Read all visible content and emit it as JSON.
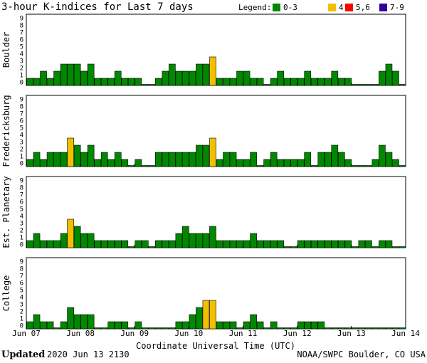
{
  "chart_data": {
    "type": "bar",
    "title": "3-hour K-indices for Last 7 days",
    "legend": {
      "title": "Legend:",
      "entries": [
        {
          "label": "0-3",
          "color": "#008800"
        },
        {
          "label": "4",
          "color": "#f0c000"
        },
        {
          "label": "5,6",
          "color": "#ff0000"
        },
        {
          "label": "7-9",
          "color": "#330099"
        }
      ]
    },
    "xlabel": "Coordinate Universal Time (UTC)",
    "xticks": [
      "Jun 07",
      "Jun 08",
      "Jun 09",
      "Jun 10",
      "Jun 11",
      "Jun 12",
      "Jun 13",
      "Jun 14"
    ],
    "ylim": [
      0,
      9
    ],
    "yticks": [
      0,
      1,
      2,
      3,
      4,
      5,
      6,
      7,
      8,
      9
    ],
    "series": [
      {
        "name": "Boulder",
        "values": [
          1,
          1,
          2,
          1,
          2,
          3,
          3,
          3,
          2,
          3,
          1,
          1,
          1,
          2,
          1,
          1,
          1,
          0,
          0,
          1,
          2,
          3,
          2,
          2,
          2,
          3,
          3,
          4,
          1,
          1,
          1,
          2,
          2,
          1,
          1,
          0,
          1,
          2,
          1,
          1,
          1,
          2,
          1,
          1,
          1,
          2,
          1,
          1,
          0,
          0,
          0,
          0,
          2,
          3,
          2,
          0
        ]
      },
      {
        "name": "Fredericksburg",
        "values": [
          1,
          2,
          1,
          2,
          2,
          2,
          4,
          3,
          2,
          3,
          1,
          2,
          1,
          2,
          1,
          0,
          1,
          0,
          0,
          2,
          2,
          2,
          2,
          2,
          2,
          3,
          3,
          4,
          1,
          2,
          2,
          1,
          1,
          2,
          0,
          1,
          2,
          1,
          1,
          1,
          1,
          2,
          0,
          2,
          2,
          3,
          2,
          1,
          0,
          0,
          0,
          1,
          3,
          2,
          1,
          0
        ]
      },
      {
        "name": "Est. Planetary",
        "values": [
          1,
          2,
          1,
          1,
          1,
          2,
          4,
          3,
          2,
          2,
          1,
          1,
          1,
          1,
          1,
          0,
          1,
          1,
          0,
          1,
          1,
          1,
          2,
          3,
          2,
          2,
          2,
          3,
          1,
          1,
          1,
          1,
          1,
          2,
          1,
          1,
          1,
          1,
          0,
          0,
          1,
          1,
          1,
          1,
          1,
          1,
          1,
          1,
          0,
          1,
          1,
          0,
          1,
          1,
          0,
          0
        ]
      },
      {
        "name": "College",
        "values": [
          1,
          2,
          1,
          1,
          0,
          1,
          3,
          2,
          2,
          2,
          0,
          0,
          1,
          1,
          1,
          0,
          1,
          0,
          0,
          0,
          0,
          0,
          1,
          1,
          2,
          3,
          4,
          4,
          1,
          1,
          1,
          0,
          1,
          2,
          1,
          0,
          1,
          0,
          0,
          0,
          1,
          1,
          1,
          1,
          0,
          0,
          0,
          0,
          0,
          0,
          0,
          0,
          0,
          0,
          0,
          0
        ]
      }
    ]
  },
  "footer": {
    "updated_label": "Updated",
    "updated_value": "2020 Jun 13 2130",
    "source": "NOAA/SWPC Boulder, CO USA"
  }
}
